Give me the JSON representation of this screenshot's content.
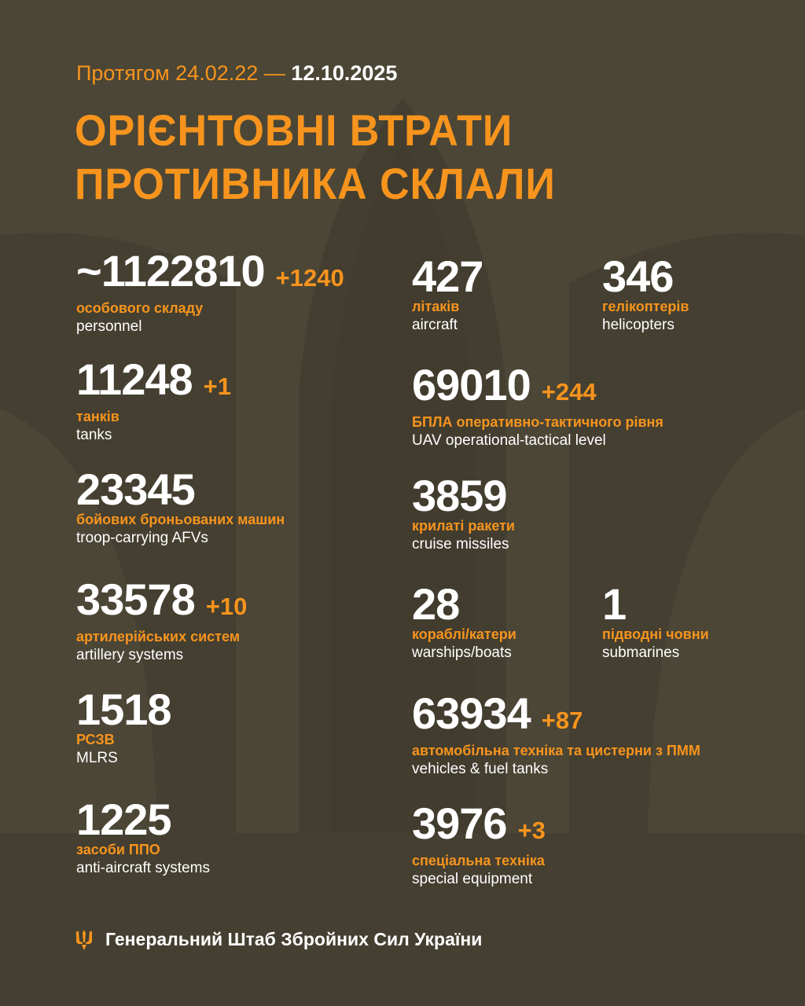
{
  "header": {
    "period_prefix": "Протягом 24.02.22 —",
    "period_end": "12.10.2025",
    "title_line1": "ОРІЄНТОВНІ ВТРАТИ",
    "title_line2": "ПРОТИВНИКА СКЛАЛИ"
  },
  "colors": {
    "background": "#4b4636",
    "accent": "#f7941d",
    "text": "#ffffff"
  },
  "left": [
    {
      "value": "~1122810",
      "delta": "+1240",
      "ua": "особового складу",
      "en": "personnel"
    },
    {
      "value": "11248",
      "delta": "+1",
      "ua": "танків",
      "en": "tanks"
    },
    {
      "value": "23345",
      "delta": "",
      "ua": "бойових броньованих машин",
      "en": "troop-carrying AFVs"
    },
    {
      "value": "33578",
      "delta": "+10",
      "ua": "артилерійських систем",
      "en": "artillery systems"
    },
    {
      "value": "1518",
      "delta": "",
      "ua": "РСЗВ",
      "en": "MLRS"
    },
    {
      "value": "1225",
      "delta": "",
      "ua": "засоби ППО",
      "en": "anti-aircraft systems"
    }
  ],
  "right": [
    {
      "value": "427",
      "delta": "",
      "ua": "літаків",
      "en": "aircraft"
    },
    {
      "value": "346",
      "delta": "",
      "ua": "гелікоптерів",
      "en": "helicopters"
    },
    {
      "value": "69010",
      "delta": "+244",
      "ua": "БПЛА оперативно-тактичного рівня",
      "en": "UAV operational-tactical level"
    },
    {
      "value": "3859",
      "delta": "",
      "ua": "крилаті ракети",
      "en": "cruise missiles"
    },
    {
      "value": "28",
      "delta": "",
      "ua": "кораблі/катери",
      "en": "warships/boats"
    },
    {
      "value": "1",
      "delta": "",
      "ua": "підводні човни",
      "en": "submarines"
    },
    {
      "value": "63934",
      "delta": "+87",
      "ua": "автомобільна техніка та цистерни з ПММ",
      "en": "vehicles & fuel tanks"
    },
    {
      "value": "3976",
      "delta": "+3",
      "ua": "спеціальна техніка",
      "en": "special equipment"
    }
  ],
  "footer": {
    "icon": "trident-icon",
    "text": "Генеральний Штаб Збройних Сил України"
  }
}
